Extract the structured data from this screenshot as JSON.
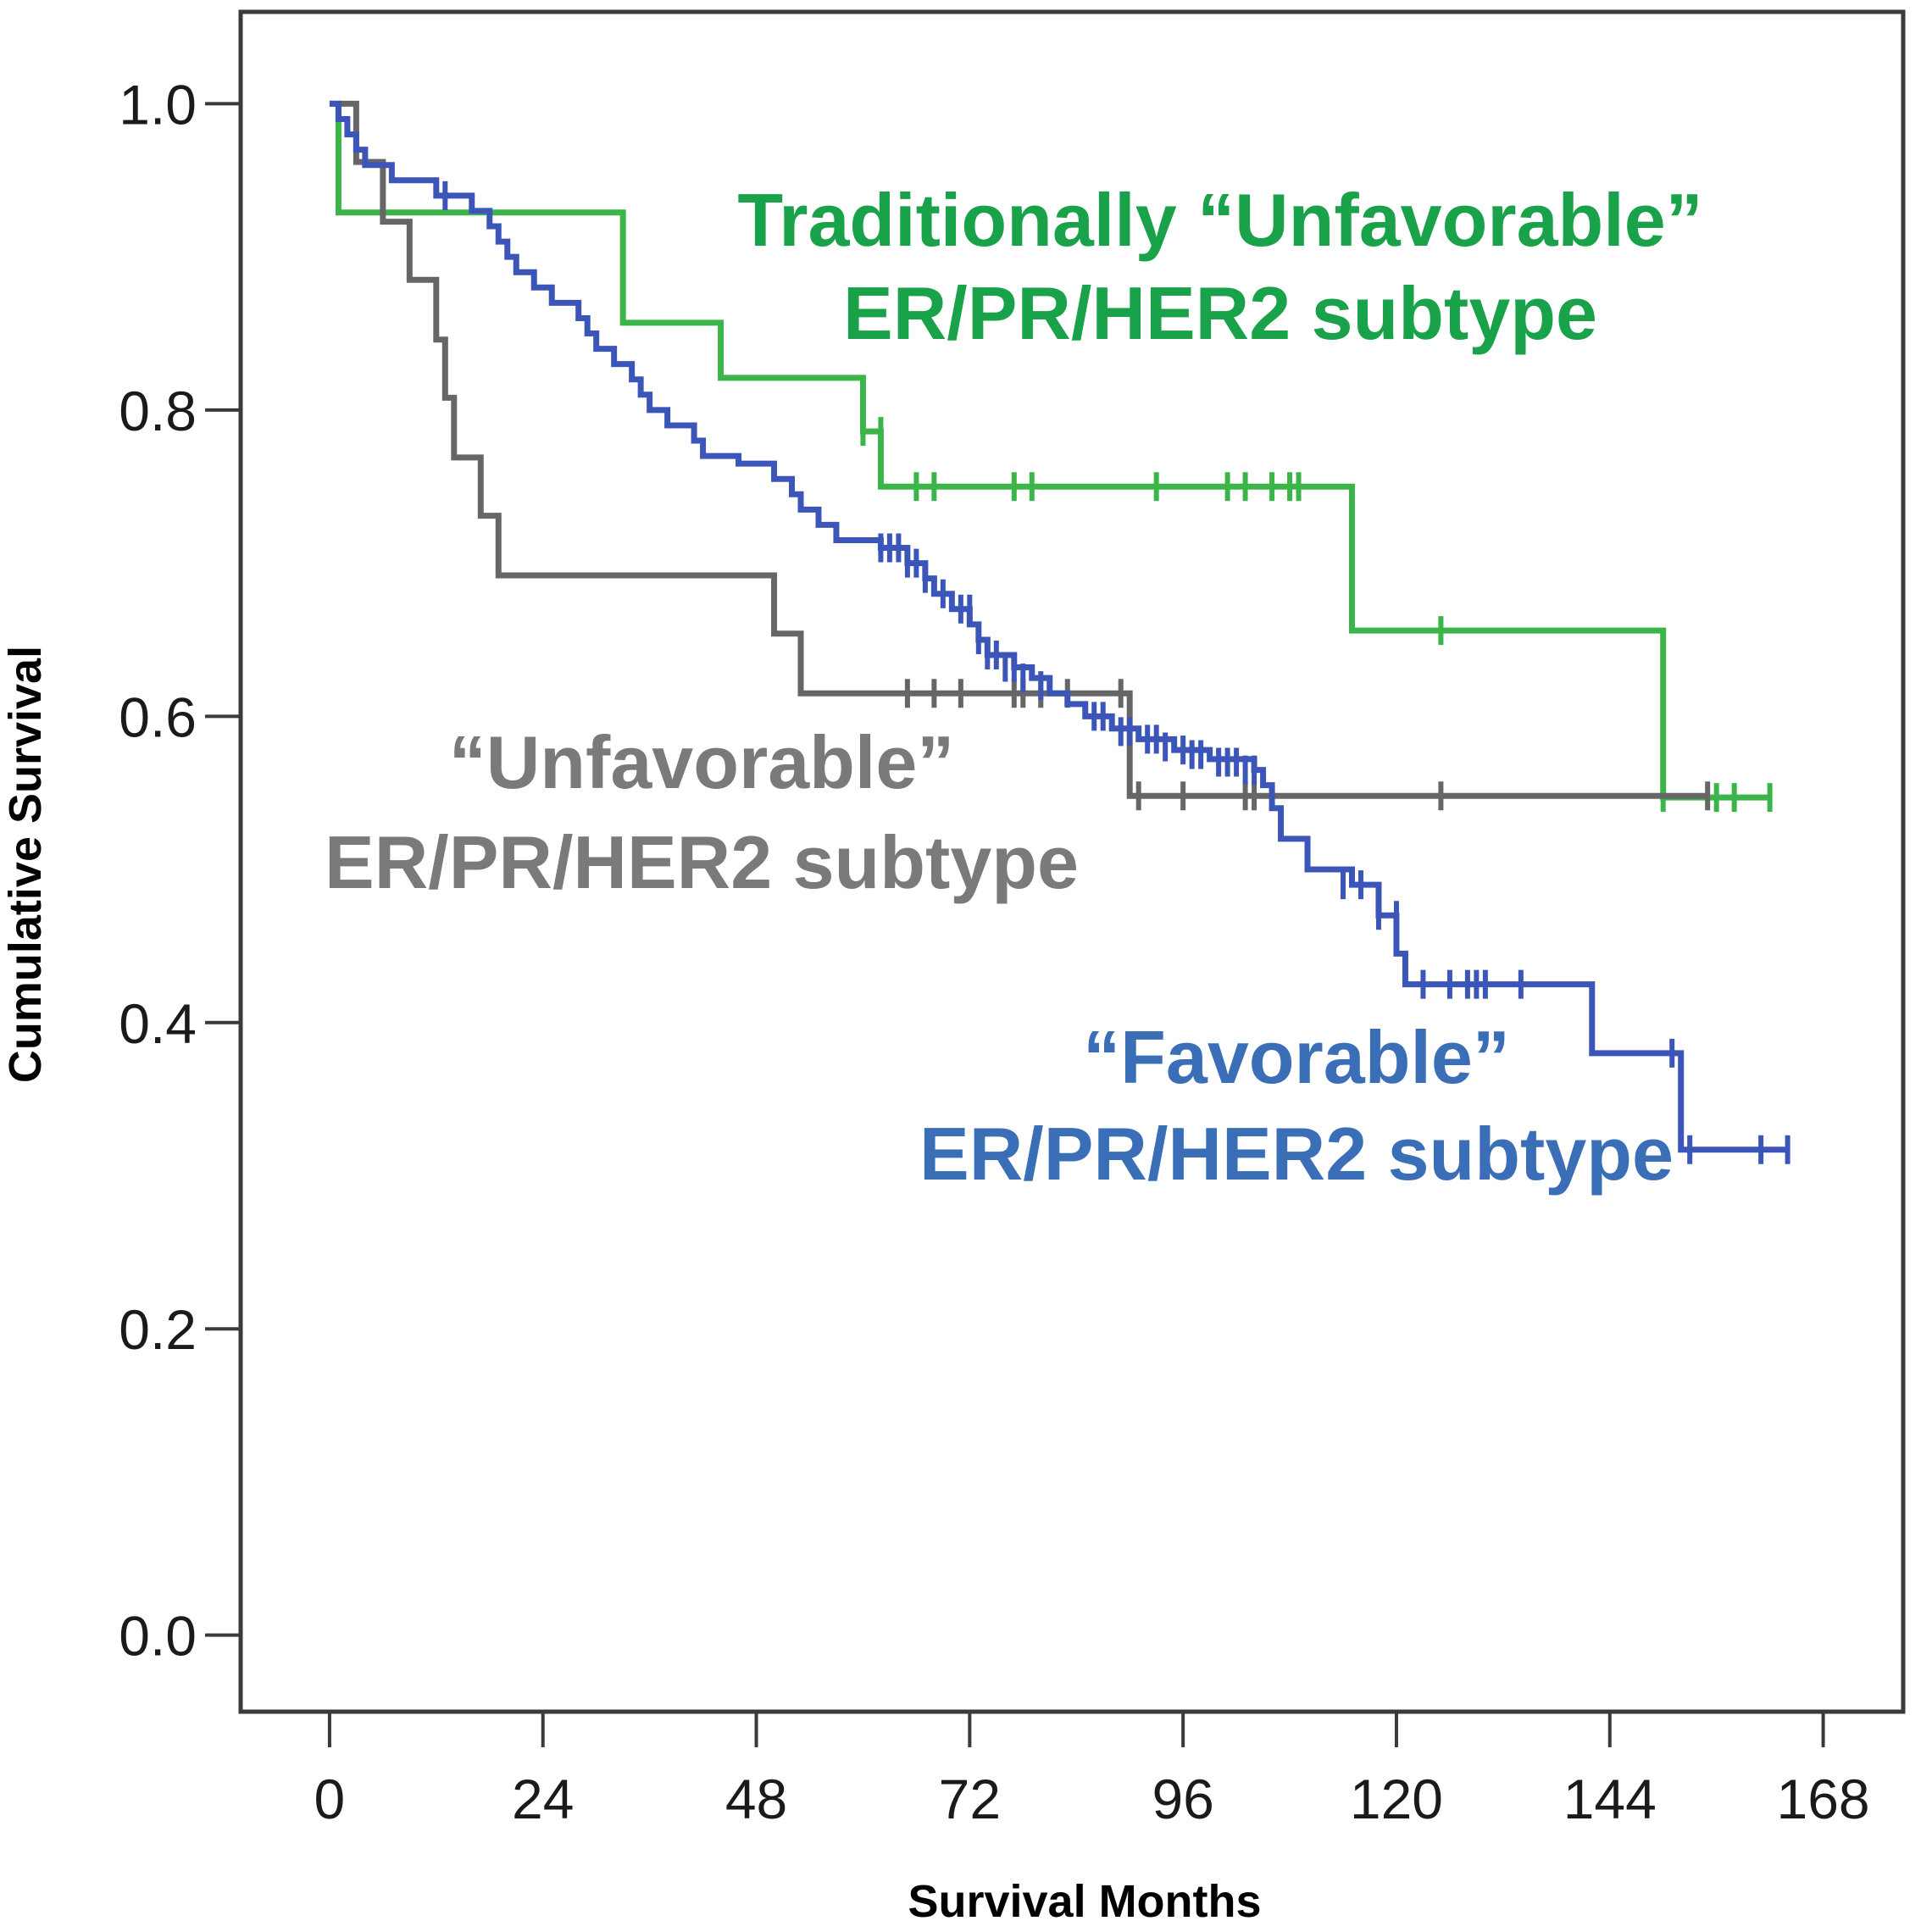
{
  "chart_data": {
    "type": "line",
    "title": "",
    "xlabel": "Survival Months",
    "ylabel": "Cumulative Survival",
    "xlim": [
      -10,
      177
    ],
    "ylim": [
      -0.05,
      1.06
    ],
    "xticks": [
      0,
      24,
      48,
      72,
      96,
      120,
      144,
      168
    ],
    "yticks": [
      0.0,
      0.2,
      0.4,
      0.6,
      0.8,
      1.0
    ],
    "ytick_labels": [
      "0.0",
      "0.2",
      "0.4",
      "0.6",
      "0.8",
      "1.0"
    ],
    "grid": false,
    "legend": "none",
    "annotations": [
      {
        "lines": [
          "Traditionally “Unfavorable”",
          "ER/PR/HER2 subtype"
        ],
        "color": "#1aa24a",
        "series": "green"
      },
      {
        "lines": [
          "“Unfavorable”",
          "ER/PR/HER2 subtype"
        ],
        "color": "#7a7a7a",
        "series": "gray"
      },
      {
        "lines": [
          "“Favorable”",
          "ER/PR/HER2 subtype"
        ],
        "color": "#3a6fb8",
        "series": "blue"
      }
    ],
    "series": [
      {
        "key": "green",
        "color": "#3bb54a",
        "steps": [
          [
            0,
            1.0
          ],
          [
            1,
            0.929
          ],
          [
            33,
            0.857
          ],
          [
            44,
            0.821
          ],
          [
            60,
            0.786
          ],
          [
            62,
            0.75
          ],
          [
            115,
            0.656
          ],
          [
            150,
            0.547
          ]
        ],
        "end_x": 162,
        "censors": [
          [
            60,
            0.786
          ],
          [
            62,
            0.786
          ],
          [
            66,
            0.75
          ],
          [
            68,
            0.75
          ],
          [
            77,
            0.75
          ],
          [
            79,
            0.75
          ],
          [
            93,
            0.75
          ],
          [
            101,
            0.75
          ],
          [
            103,
            0.75
          ],
          [
            106,
            0.75
          ],
          [
            108,
            0.75
          ],
          [
            109,
            0.75
          ],
          [
            125,
            0.656
          ],
          [
            150,
            0.547
          ],
          [
            156,
            0.547
          ],
          [
            158,
            0.547
          ],
          [
            162,
            0.547
          ]
        ]
      },
      {
        "key": "gray",
        "color": "#666666",
        "steps": [
          [
            1,
            1.0
          ],
          [
            3,
            0.962
          ],
          [
            6,
            0.923
          ],
          [
            9,
            0.885
          ],
          [
            12,
            0.846
          ],
          [
            13,
            0.808
          ],
          [
            14,
            0.769
          ],
          [
            17,
            0.731
          ],
          [
            19,
            0.692
          ],
          [
            50,
            0.654
          ],
          [
            53,
            0.615
          ],
          [
            90,
            0.548
          ]
        ],
        "end_x": 155,
        "censors": [
          [
            65,
            0.615
          ],
          [
            68,
            0.615
          ],
          [
            71,
            0.615
          ],
          [
            77,
            0.615
          ],
          [
            78,
            0.615
          ],
          [
            80,
            0.615
          ],
          [
            83,
            0.615
          ],
          [
            89,
            0.615
          ],
          [
            91,
            0.548
          ],
          [
            96,
            0.548
          ],
          [
            103,
            0.548
          ],
          [
            104,
            0.548
          ],
          [
            125,
            0.548
          ],
          [
            155,
            0.548
          ]
        ]
      },
      {
        "key": "blue",
        "color": "#3b55b8",
        "steps": [
          [
            0,
            1.0
          ],
          [
            1,
            0.99
          ],
          [
            2,
            0.98
          ],
          [
            3,
            0.97
          ],
          [
            4,
            0.96
          ],
          [
            7,
            0.95
          ],
          [
            12,
            0.94
          ],
          [
            16,
            0.93
          ],
          [
            18,
            0.92
          ],
          [
            19,
            0.91
          ],
          [
            20,
            0.9
          ],
          [
            21,
            0.89
          ],
          [
            23,
            0.88
          ],
          [
            25,
            0.87
          ],
          [
            28,
            0.86
          ],
          [
            29,
            0.85
          ],
          [
            30,
            0.84
          ],
          [
            32,
            0.83
          ],
          [
            34,
            0.82
          ],
          [
            35,
            0.81
          ],
          [
            36,
            0.8
          ],
          [
            38,
            0.79
          ],
          [
            41,
            0.78
          ],
          [
            42,
            0.77
          ],
          [
            46,
            0.765
          ],
          [
            50,
            0.755
          ],
          [
            52,
            0.745
          ],
          [
            53,
            0.735
          ],
          [
            55,
            0.725
          ],
          [
            57,
            0.715
          ],
          [
            62,
            0.71
          ],
          [
            65,
            0.7
          ],
          [
            67,
            0.69
          ],
          [
            68,
            0.68
          ],
          [
            70,
            0.67
          ],
          [
            72,
            0.66
          ],
          [
            73,
            0.65
          ],
          [
            74,
            0.64
          ],
          [
            77,
            0.632
          ],
          [
            79,
            0.625
          ],
          [
            81,
            0.615
          ],
          [
            83,
            0.608
          ],
          [
            85,
            0.6
          ],
          [
            88,
            0.592
          ],
          [
            91,
            0.585
          ],
          [
            95,
            0.578
          ],
          [
            99,
            0.572
          ],
          [
            104,
            0.565
          ],
          [
            105,
            0.555
          ],
          [
            106,
            0.54
          ],
          [
            107,
            0.52
          ],
          [
            110,
            0.5
          ],
          [
            115,
            0.49
          ],
          [
            118,
            0.47
          ],
          [
            120,
            0.445
          ],
          [
            121,
            0.425
          ],
          [
            142,
            0.38
          ],
          [
            152,
            0.317
          ]
        ],
        "end_x": 164,
        "censors": [
          [
            13,
            0.94
          ],
          [
            62,
            0.71
          ],
          [
            63,
            0.71
          ],
          [
            64,
            0.71
          ],
          [
            65,
            0.7
          ],
          [
            66,
            0.7
          ],
          [
            67,
            0.69
          ],
          [
            69,
            0.68
          ],
          [
            71,
            0.67
          ],
          [
            72,
            0.67
          ],
          [
            73,
            0.65
          ],
          [
            74,
            0.64
          ],
          [
            75,
            0.64
          ],
          [
            76,
            0.632
          ],
          [
            77,
            0.632
          ],
          [
            78,
            0.625
          ],
          [
            80,
            0.62
          ],
          [
            86,
            0.6
          ],
          [
            87,
            0.6
          ],
          [
            89,
            0.59
          ],
          [
            90,
            0.59
          ],
          [
            92,
            0.585
          ],
          [
            93,
            0.585
          ],
          [
            94,
            0.58
          ],
          [
            96,
            0.578
          ],
          [
            97,
            0.575
          ],
          [
            98,
            0.575
          ],
          [
            100,
            0.57
          ],
          [
            101,
            0.57
          ],
          [
            102,
            0.57
          ],
          [
            103,
            0.565
          ],
          [
            104,
            0.565
          ],
          [
            114,
            0.49
          ],
          [
            116,
            0.49
          ],
          [
            118,
            0.47
          ],
          [
            120,
            0.47
          ],
          [
            123,
            0.425
          ],
          [
            126,
            0.425
          ],
          [
            128,
            0.425
          ],
          [
            129,
            0.425
          ],
          [
            130,
            0.425
          ],
          [
            134,
            0.425
          ],
          [
            151,
            0.38
          ],
          [
            153,
            0.317
          ],
          [
            161,
            0.317
          ],
          [
            164,
            0.317
          ]
        ]
      }
    ]
  }
}
